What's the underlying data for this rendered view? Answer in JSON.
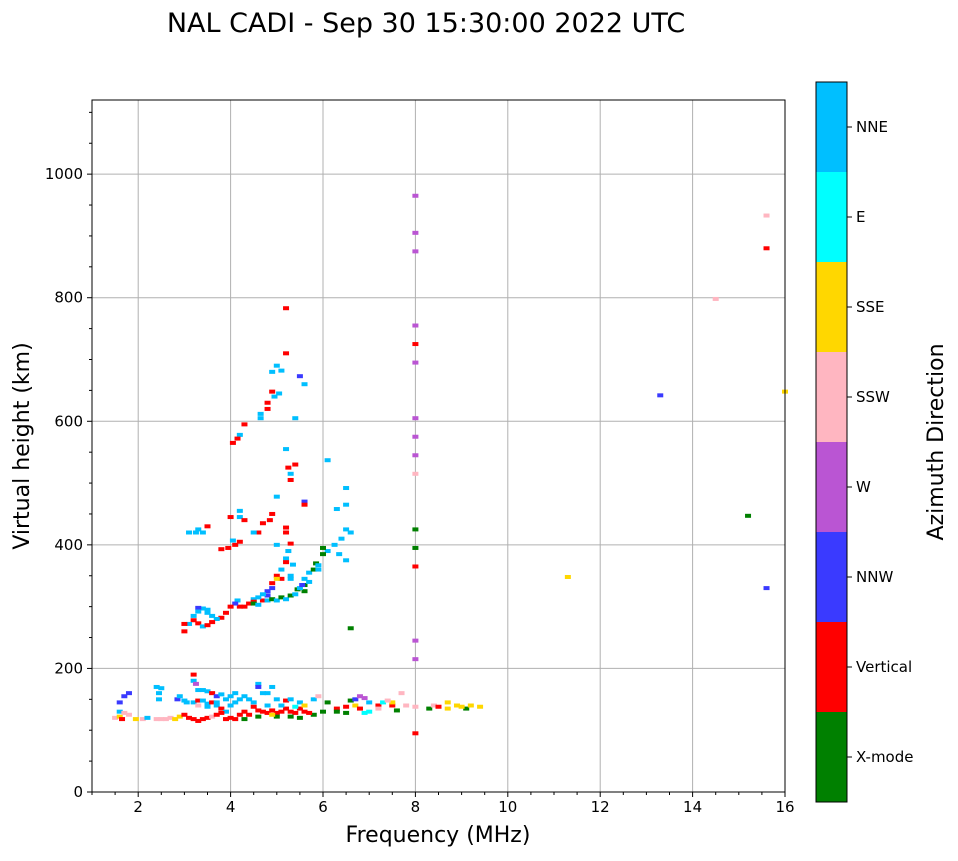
{
  "chart_data": {
    "type": "scatter",
    "title": "NAL CADI - Sep 30 15:30:00 2022 UTC",
    "xlabel": "Frequency (MHz)",
    "ylabel": "Virtual height (km)",
    "xlim": [
      1,
      16
    ],
    "ylim": [
      0,
      1120
    ],
    "xticks": [
      2,
      4,
      6,
      8,
      10,
      12,
      14,
      16
    ],
    "yticks": [
      0,
      200,
      400,
      600,
      800,
      1000
    ],
    "grid": true,
    "colorbar": {
      "label": "Azimuth Direction",
      "categories": [
        "X-mode",
        "Vertical",
        "NNW",
        "W",
        "SSW",
        "SSE",
        "E",
        "NNE"
      ],
      "colors": [
        "#008000",
        "#ff0000",
        "#3a3aff",
        "#ba55d3",
        "#ffb6c1",
        "#ffd700",
        "#00ffff",
        "#00bfff"
      ]
    },
    "point_fields": [
      "frequency_mhz",
      "virtual_height_km",
      "direction_index"
    ],
    "points": [
      [
        8,
        965,
        3
      ],
      [
        8,
        905,
        3
      ],
      [
        8,
        875,
        3
      ],
      [
        8,
        755,
        3
      ],
      [
        8,
        695,
        3
      ],
      [
        8,
        605,
        3
      ],
      [
        8,
        575,
        3
      ],
      [
        8,
        545,
        3
      ],
      [
        8,
        245,
        3
      ],
      [
        8,
        215,
        3
      ],
      [
        8,
        725,
        1
      ],
      [
        8,
        365,
        1
      ],
      [
        8,
        95,
        1
      ],
      [
        8,
        425,
        0
      ],
      [
        8,
        395,
        0
      ],
      [
        8,
        515,
        4
      ],
      [
        15.6,
        880,
        1
      ],
      [
        15.6,
        933,
        4
      ],
      [
        14.5,
        798,
        4
      ],
      [
        13.3,
        642,
        2
      ],
      [
        15.2,
        447,
        0
      ],
      [
        15.6,
        330,
        2
      ],
      [
        11.3,
        348,
        5
      ],
      [
        16,
        648,
        5
      ],
      [
        5.2,
        783,
        1
      ],
      [
        5.2,
        710,
        1
      ],
      [
        5.5,
        673,
        2
      ],
      [
        5.0,
        690,
        7
      ],
      [
        4.9,
        680,
        7
      ],
      [
        5.1,
        682,
        7
      ],
      [
        5.6,
        660,
        7
      ],
      [
        4.9,
        648,
        1
      ],
      [
        4.95,
        640,
        7
      ],
      [
        5.05,
        645,
        7
      ],
      [
        4.8,
        630,
        1
      ],
      [
        4.8,
        620,
        1
      ],
      [
        4.65,
        612,
        7
      ],
      [
        4.65,
        605,
        7
      ],
      [
        4.3,
        595,
        1
      ],
      [
        5.4,
        605,
        7
      ],
      [
        4.2,
        578,
        7
      ],
      [
        4.15,
        572,
        1
      ],
      [
        4.05,
        565,
        1
      ],
      [
        5.2,
        555,
        7
      ],
      [
        5.25,
        525,
        1
      ],
      [
        5.3,
        515,
        7
      ],
      [
        5.4,
        530,
        1
      ],
      [
        5.3,
        505,
        1
      ],
      [
        6.1,
        537,
        7
      ],
      [
        5.0,
        478,
        7
      ],
      [
        5.6,
        470,
        2
      ],
      [
        5.6,
        465,
        1
      ],
      [
        6.5,
        492,
        7
      ],
      [
        6.5,
        465,
        7
      ],
      [
        6.3,
        458,
        7
      ],
      [
        6.6,
        420,
        7
      ],
      [
        6.5,
        425,
        7
      ],
      [
        6.4,
        410,
        7
      ],
      [
        6.25,
        400,
        7
      ],
      [
        6.1,
        390,
        7
      ],
      [
        6.0,
        395,
        0
      ],
      [
        6.0,
        385,
        0
      ],
      [
        6.5,
        375,
        7
      ],
      [
        6.35,
        385,
        7
      ],
      [
        4.9,
        450,
        1
      ],
      [
        4.85,
        440,
        1
      ],
      [
        4.7,
        435,
        1
      ],
      [
        4.6,
        420,
        1
      ],
      [
        4.2,
        455,
        7
      ],
      [
        4.2,
        445,
        7
      ],
      [
        4.0,
        445,
        1
      ],
      [
        4.3,
        440,
        1
      ],
      [
        4.5,
        420,
        7
      ],
      [
        5.2,
        428,
        1
      ],
      [
        5.2,
        420,
        1
      ],
      [
        5.3,
        402,
        1
      ],
      [
        5.25,
        390,
        7
      ],
      [
        5.0,
        400,
        7
      ],
      [
        4.05,
        407,
        7
      ],
      [
        4.1,
        400,
        1
      ],
      [
        3.8,
        393,
        1
      ],
      [
        3.95,
        395,
        1
      ],
      [
        4.2,
        405,
        1
      ],
      [
        3.5,
        430,
        1
      ],
      [
        3.3,
        425,
        7
      ],
      [
        3.4,
        420,
        7
      ],
      [
        3.25,
        420,
        7
      ],
      [
        3.1,
        420,
        7
      ],
      [
        5.2,
        378,
        7
      ],
      [
        5.2,
        372,
        1
      ],
      [
        5.35,
        368,
        7
      ],
      [
        5.1,
        360,
        7
      ],
      [
        5.0,
        350,
        1
      ],
      [
        5.1,
        345,
        1
      ],
      [
        5.0,
        345,
        5
      ],
      [
        5.3,
        350,
        7
      ],
      [
        5.3,
        345,
        7
      ],
      [
        5.6,
        345,
        7
      ],
      [
        5.7,
        355,
        7
      ],
      [
        5.8,
        360,
        0
      ],
      [
        5.9,
        360,
        7
      ],
      [
        5.85,
        370,
        0
      ],
      [
        5.9,
        367,
        7
      ],
      [
        5.6,
        335,
        0
      ],
      [
        5.6,
        325,
        0
      ],
      [
        5.7,
        340,
        7
      ],
      [
        4.9,
        338,
        1
      ],
      [
        4.9,
        330,
        2
      ],
      [
        4.8,
        325,
        2
      ],
      [
        4.8,
        318,
        2
      ],
      [
        4.7,
        320,
        7
      ],
      [
        4.7,
        310,
        1
      ],
      [
        4.6,
        315,
        7
      ],
      [
        4.5,
        312,
        7
      ],
      [
        4.5,
        308,
        1
      ],
      [
        4.4,
        305,
        1
      ],
      [
        4.3,
        300,
        1
      ],
      [
        4.2,
        300,
        1
      ],
      [
        4.15,
        310,
        7
      ],
      [
        4.1,
        305,
        2
      ],
      [
        4.0,
        300,
        1
      ],
      [
        3.9,
        290,
        1
      ],
      [
        3.8,
        282,
        1
      ],
      [
        3.7,
        280,
        7
      ],
      [
        3.6,
        285,
        7
      ],
      [
        3.5,
        290,
        7
      ],
      [
        3.5,
        295,
        7
      ],
      [
        3.4,
        297,
        7
      ],
      [
        3.3,
        298,
        2
      ],
      [
        3.3,
        292,
        7
      ],
      [
        3.2,
        285,
        7
      ],
      [
        3.2,
        278,
        1
      ],
      [
        3.3,
        273,
        1
      ],
      [
        3.1,
        272,
        7
      ],
      [
        3.4,
        268,
        7
      ],
      [
        3.0,
        260,
        1
      ],
      [
        3.0,
        272,
        1
      ],
      [
        3.5,
        270,
        1
      ],
      [
        3.6,
        275,
        1
      ],
      [
        4.8,
        310,
        7
      ],
      [
        4.9,
        312,
        0
      ],
      [
        5.0,
        310,
        7
      ],
      [
        5.1,
        315,
        0
      ],
      [
        5.2,
        312,
        7
      ],
      [
        5.3,
        318,
        0
      ],
      [
        5.4,
        320,
        7
      ],
      [
        5.45,
        328,
        0
      ],
      [
        5.5,
        330,
        7
      ],
      [
        5.55,
        335,
        2
      ],
      [
        4.5,
        305,
        0
      ],
      [
        4.6,
        303,
        7
      ],
      [
        6.6,
        265,
        0
      ],
      [
        1.5,
        120,
        4
      ],
      [
        1.6,
        122,
        5
      ],
      [
        1.6,
        130,
        7
      ],
      [
        1.6,
        145,
        2
      ],
      [
        1.7,
        155,
        2
      ],
      [
        1.7,
        128,
        4
      ],
      [
        1.65,
        118,
        1
      ],
      [
        1.8,
        160,
        2
      ],
      [
        1.8,
        125,
        4
      ],
      [
        1.95,
        118,
        5
      ],
      [
        2.1,
        118,
        4
      ],
      [
        2.2,
        120,
        7
      ],
      [
        2.4,
        118,
        4
      ],
      [
        2.5,
        118,
        4
      ],
      [
        2.6,
        118,
        4
      ],
      [
        2.7,
        120,
        4
      ],
      [
        2.8,
        118,
        5
      ],
      [
        2.9,
        122,
        5
      ],
      [
        2.4,
        170,
        7
      ],
      [
        2.45,
        160,
        7
      ],
      [
        2.5,
        168,
        7
      ],
      [
        2.45,
        150,
        7
      ],
      [
        2.85,
        150,
        2
      ],
      [
        2.9,
        155,
        7
      ],
      [
        3.0,
        148,
        7
      ],
      [
        3.2,
        190,
        1
      ],
      [
        3.2,
        180,
        7
      ],
      [
        3.25,
        175,
        3
      ],
      [
        3.3,
        165,
        7
      ],
      [
        3.4,
        165,
        7
      ],
      [
        3.5,
        163,
        7
      ],
      [
        3.6,
        160,
        1
      ],
      [
        3.7,
        155,
        2
      ],
      [
        3.8,
        158,
        7
      ],
      [
        3.9,
        150,
        7
      ],
      [
        3.05,
        145,
        7
      ],
      [
        3.2,
        145,
        7
      ],
      [
        3.3,
        148,
        1
      ],
      [
        3.4,
        148,
        7
      ],
      [
        3.5,
        143,
        7
      ],
      [
        3.6,
        145,
        1
      ],
      [
        3.7,
        140,
        7
      ],
      [
        3.8,
        135,
        1
      ],
      [
        3.9,
        130,
        7
      ],
      [
        3.0,
        125,
        1
      ],
      [
        3.1,
        120,
        1
      ],
      [
        3.2,
        118,
        1
      ],
      [
        3.3,
        115,
        1
      ],
      [
        3.4,
        118,
        1
      ],
      [
        3.5,
        120,
        1
      ],
      [
        3.6,
        122,
        4
      ],
      [
        3.7,
        125,
        1
      ],
      [
        3.8,
        128,
        1
      ],
      [
        3.9,
        118,
        1
      ],
      [
        4.0,
        120,
        1
      ],
      [
        4.1,
        118,
        1
      ],
      [
        4.2,
        125,
        1
      ],
      [
        4.3,
        118,
        0
      ],
      [
        4.3,
        130,
        1
      ],
      [
        4.4,
        125,
        1
      ],
      [
        3.3,
        140,
        4
      ],
      [
        3.5,
        138,
        7
      ],
      [
        3.7,
        145,
        7
      ],
      [
        4.0,
        140,
        7
      ],
      [
        4.1,
        145,
        7
      ],
      [
        4.2,
        150,
        7
      ],
      [
        4.3,
        155,
        7
      ],
      [
        4.0,
        155,
        7
      ],
      [
        4.1,
        160,
        7
      ],
      [
        4.4,
        150,
        7
      ],
      [
        4.6,
        175,
        7
      ],
      [
        4.6,
        170,
        2
      ],
      [
        4.7,
        160,
        7
      ],
      [
        4.8,
        160,
        7
      ],
      [
        4.9,
        170,
        7
      ],
      [
        4.5,
        138,
        1
      ],
      [
        4.6,
        132,
        1
      ],
      [
        4.7,
        130,
        1
      ],
      [
        4.8,
        128,
        1
      ],
      [
        4.9,
        132,
        1
      ],
      [
        5.0,
        128,
        1
      ],
      [
        5.1,
        130,
        1
      ],
      [
        5.2,
        135,
        1
      ],
      [
        5.3,
        130,
        1
      ],
      [
        5.4,
        128,
        1
      ],
      [
        5.5,
        135,
        1
      ],
      [
        5.6,
        130,
        1
      ],
      [
        5.3,
        122,
        0
      ],
      [
        5.5,
        120,
        0
      ],
      [
        5.0,
        122,
        0
      ],
      [
        4.6,
        122,
        0
      ],
      [
        4.5,
        145,
        7
      ],
      [
        4.8,
        140,
        7
      ],
      [
        5.0,
        150,
        7
      ],
      [
        5.2,
        148,
        1
      ],
      [
        5.3,
        150,
        7
      ],
      [
        5.5,
        145,
        7
      ],
      [
        5.8,
        150,
        7
      ],
      [
        5.9,
        155,
        4
      ],
      [
        4.9,
        125,
        5
      ],
      [
        5.1,
        140,
        7
      ],
      [
        5.4,
        138,
        6
      ],
      [
        5.6,
        140,
        5
      ],
      [
        5.8,
        125,
        0
      ],
      [
        5.7,
        128,
        1
      ],
      [
        6.0,
        130,
        0
      ],
      [
        6.1,
        145,
        0
      ],
      [
        6.3,
        135,
        1
      ],
      [
        6.3,
        130,
        0
      ],
      [
        6.5,
        138,
        1
      ],
      [
        6.5,
        128,
        0
      ],
      [
        6.6,
        148,
        0
      ],
      [
        6.7,
        150,
        2
      ],
      [
        6.8,
        155,
        3
      ],
      [
        6.9,
        152,
        3
      ],
      [
        6.7,
        140,
        5
      ],
      [
        6.8,
        135,
        1
      ],
      [
        7.0,
        130,
        6
      ],
      [
        6.9,
        128,
        6
      ],
      [
        7.2,
        140,
        1
      ],
      [
        7.2,
        135,
        4
      ],
      [
        7.3,
        145,
        6
      ],
      [
        7.5,
        140,
        1
      ],
      [
        7.5,
        145,
        5
      ],
      [
        7.6,
        132,
        0
      ],
      [
        7.7,
        160,
        4
      ],
      [
        7.8,
        140,
        4
      ],
      [
        7.0,
        145,
        7
      ],
      [
        7.4,
        148,
        4
      ],
      [
        8.3,
        135,
        0
      ],
      [
        8.4,
        140,
        4
      ],
      [
        8.5,
        138,
        1
      ],
      [
        8.7,
        145,
        5
      ],
      [
        8.9,
        140,
        5
      ],
      [
        9.1,
        135,
        0
      ],
      [
        9.2,
        140,
        5
      ],
      [
        9.4,
        138,
        5
      ],
      [
        8.7,
        135,
        5
      ],
      [
        9.0,
        138,
        5
      ],
      [
        8.0,
        138,
        4
      ]
    ]
  }
}
